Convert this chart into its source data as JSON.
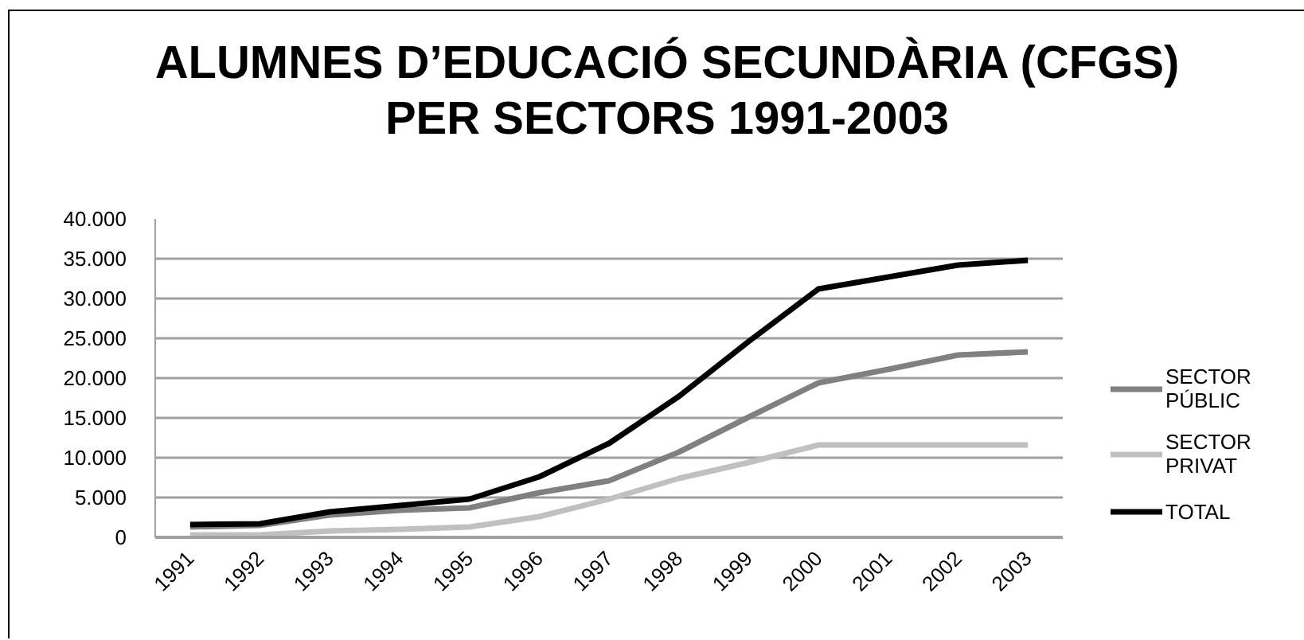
{
  "chart_data": {
    "type": "line",
    "title": "ALUMNES D’EDUCACIÓ SECUNDÀRIA (CFGS) PER SECTORS 1991-2003",
    "categories": [
      "1991",
      "1992",
      "1993",
      "1994",
      "1995",
      "1996",
      "1997",
      "1998",
      "1999",
      "2000",
      "2001",
      "2002",
      "2003"
    ],
    "series": [
      {
        "name": "SECTOR PÚBLIC",
        "color": "#808080",
        "values": [
          1300,
          1500,
          2800,
          3400,
          3700,
          5600,
          7100,
          10700,
          15100,
          19400,
          21100,
          22900,
          23300
        ]
      },
      {
        "name": "SECTOR PRIVAT",
        "color": "#c0c0c0",
        "values": [
          300,
          300,
          800,
          1000,
          1300,
          2600,
          4800,
          7400,
          9400,
          11600,
          11600,
          11600,
          11600
        ]
      },
      {
        "name": "TOTAL",
        "color": "#000000",
        "values": [
          1600,
          1700,
          3200,
          4000,
          4800,
          7600,
          11800,
          17700,
          24600,
          31200,
          32700,
          34200,
          34800
        ]
      }
    ],
    "ylim": [
      0,
      40000
    ],
    "yticks": [
      0,
      {
        "value": 5000,
        "label": "5.000"
      },
      {
        "value": 10000,
        "label": "10.000"
      },
      {
        "value": 15000,
        "label": "15.000"
      },
      {
        "value": 20000,
        "label": "20.000"
      },
      {
        "value": 25000,
        "label": "25.000"
      },
      {
        "value": 30000,
        "label": "30.000"
      },
      {
        "value": 35000,
        "label": "35.000"
      },
      {
        "value": 40000,
        "label": "40.000"
      }
    ],
    "grid": "y",
    "legend": "right",
    "line_style": "solid"
  }
}
